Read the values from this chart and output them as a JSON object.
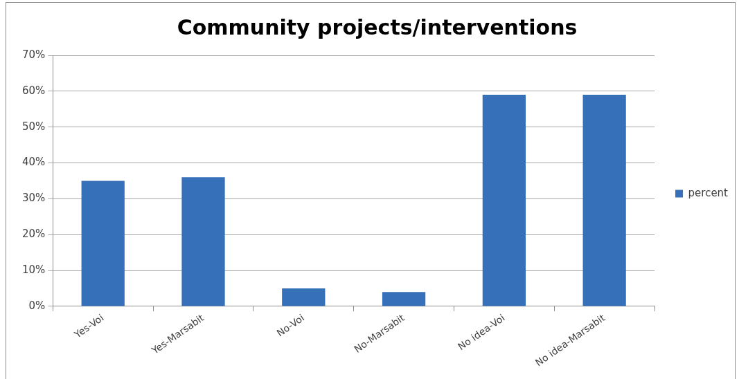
{
  "chart_data": {
    "type": "bar",
    "title": "Community projects/interventions",
    "categories": [
      "Yes-Voi",
      "Yes-Marsabit",
      "No-Voi",
      "No-Marsabit",
      "No idea-Voi",
      "No idea-Marsabit"
    ],
    "series": [
      {
        "name": "percent",
        "color": "#3670b8",
        "values": [
          35,
          36,
          5,
          4,
          59,
          59
        ]
      }
    ],
    "ylim": [
      0,
      70
    ],
    "yticks": [
      {
        "value": 0,
        "label": "0%"
      },
      {
        "value": 10,
        "label": "10%"
      },
      {
        "value": 20,
        "label": "20%"
      },
      {
        "value": 30,
        "label": "30%"
      },
      {
        "value": 40,
        "label": "40%"
      },
      {
        "value": 50,
        "label": "50%"
      },
      {
        "value": 60,
        "label": "60%"
      },
      {
        "value": 70,
        "label": "70%"
      }
    ],
    "grid": "y",
    "legend": "right"
  }
}
